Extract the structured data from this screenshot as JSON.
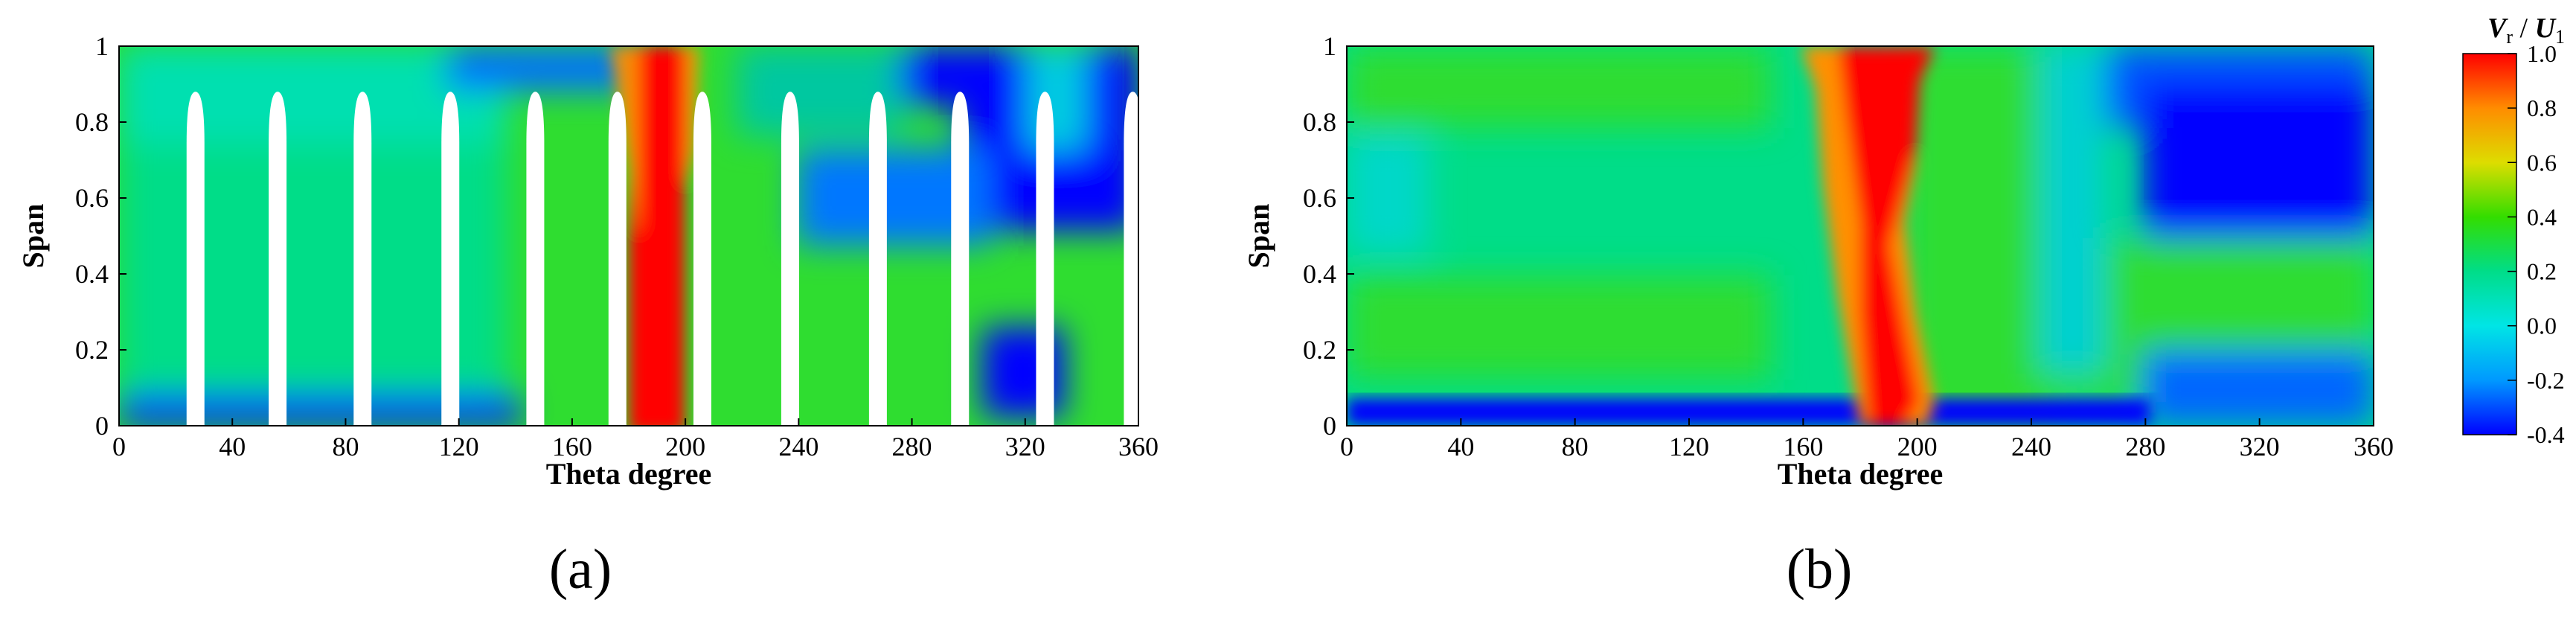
{
  "chart_data": [
    {
      "type": "heatmap",
      "panel_label": "(a)",
      "xlabel": "Theta degree",
      "ylabel": "Span",
      "xlim": [
        0,
        360
      ],
      "ylim": [
        0,
        1
      ],
      "xticks": [
        "0",
        "40",
        "80",
        "120",
        "160",
        "200",
        "240",
        "280",
        "320",
        "360"
      ],
      "yticks": [
        "0",
        "0.2",
        "0.4",
        "0.6",
        "0.8",
        "1"
      ],
      "blade_positions_deg": [
        27,
        56,
        86,
        117,
        147,
        176,
        206,
        237,
        268,
        297,
        327,
        358
      ],
      "blade_tip_span": 0.88,
      "grid": false,
      "value_regions": [
        {
          "theta": [
            0,
            360
          ],
          "span": [
            0,
            1
          ],
          "value": 0.25
        },
        {
          "theta": [
            178,
            203
          ],
          "span": [
            0,
            1
          ],
          "value": 1.0
        },
        {
          "theta": [
            170,
            215
          ],
          "span": [
            0.55,
            1
          ],
          "value": 0.75
        },
        {
          "theta": [
            290,
            350
          ],
          "span": [
            0.65,
            1
          ],
          "value": -0.35
        },
        {
          "theta": [
            305,
            330
          ],
          "span": [
            0,
            0.2
          ],
          "value": -0.35
        },
        {
          "theta": [
            0,
            170
          ],
          "span": [
            0,
            0.07
          ],
          "value": -0.3
        }
      ]
    },
    {
      "type": "heatmap",
      "panel_label": "(b)",
      "xlabel": "Theta degree",
      "ylabel": "Span",
      "xlim": [
        0,
        360
      ],
      "ylim": [
        0,
        1
      ],
      "xticks": [
        "0",
        "40",
        "80",
        "120",
        "160",
        "200",
        "240",
        "280",
        "320",
        "360"
      ],
      "yticks": [
        "0",
        "0.2",
        "0.4",
        "0.6",
        "0.8",
        "1"
      ],
      "grid": false,
      "value_regions": [
        {
          "theta": [
            0,
            360
          ],
          "span": [
            0,
            1
          ],
          "value": 0.25
        },
        {
          "theta": [
            175,
            205
          ],
          "span": [
            0,
            1
          ],
          "value": 1.0
        },
        {
          "theta": [
            165,
            195
          ],
          "span": [
            0.4,
            0.95
          ],
          "value": 0.7
        },
        {
          "theta": [
            280,
            360
          ],
          "span": [
            0.6,
            1
          ],
          "value": -0.35
        },
        {
          "theta": [
            0,
            170
          ],
          "span": [
            0,
            0.05
          ],
          "value": -0.35
        },
        {
          "theta": [
            0,
            60
          ],
          "span": [
            0.5,
            0.8
          ],
          "value": 0.1
        }
      ]
    }
  ],
  "colorbar": {
    "title_italic_v": "V",
    "title_sub_r": "r",
    "title_slash": " / ",
    "title_italic_u": "U",
    "title_sub_1": "1",
    "tick_labels": [
      "1.0",
      "0.8",
      "0.6",
      "0.4",
      "0.2",
      "0.0",
      "-0.2",
      "-0.4"
    ],
    "range": [
      -0.4,
      1.0
    ],
    "colors": [
      "#ff0000",
      "#ff8c00",
      "#dddd00",
      "#33dd00",
      "#00dd88",
      "#00e5e5",
      "#0099ff",
      "#0000ff"
    ]
  }
}
